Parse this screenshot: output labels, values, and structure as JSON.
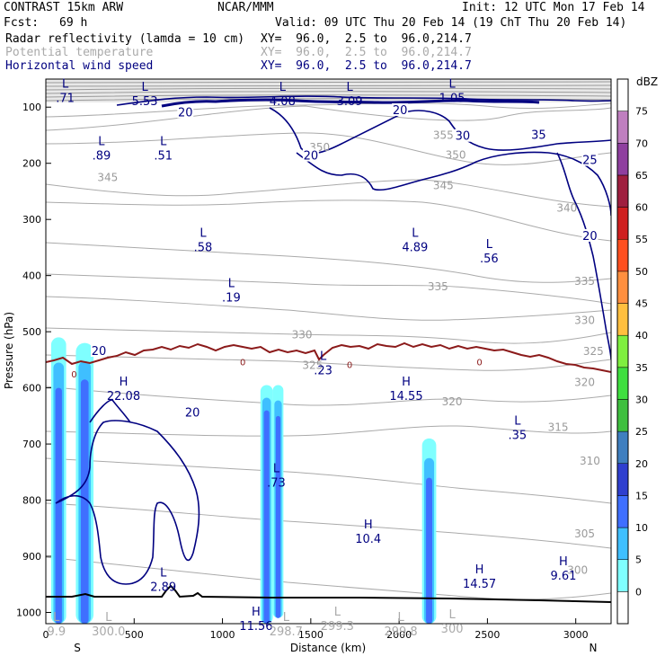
{
  "header": {
    "model": "CONTRAST 15km ARW",
    "org": "NCAR/MMM",
    "init": "Init: 12 UTC Mon 17 Feb 14",
    "fcst_label": "Fcst:",
    "fcst_value": "69 h",
    "valid": "Valid: 09 UTC Thu 20 Feb 14 (19 ChT Thu 20 Feb 14)",
    "fields": [
      {
        "name": "Radar reflectivity (lamda = 10 cm)",
        "xy": "XY=  96.0,  2.5 to  96.0,214.7",
        "color": "#000000"
      },
      {
        "name": "Potential temperature",
        "xy": "XY=  96.0,  2.5 to  96.0,214.7",
        "color": "#aaaaaa"
      },
      {
        "name": "Horizontal wind speed",
        "xy": "XY=  96.0,  2.5 to  96.0,214.7",
        "color": "#000080"
      }
    ]
  },
  "chart_data": {
    "type": "cross-section",
    "xlabel": "Distance (km)",
    "ylabel": "Pressure (hPa)",
    "xlim": [
      0,
      3200
    ],
    "ylim": [
      1020,
      50
    ],
    "x_ticks": [
      0,
      500,
      1000,
      1500,
      2000,
      2500,
      3000
    ],
    "x_tick_labels": [
      "0",
      "500",
      "1000",
      "1500",
      "2000",
      "2500",
      "3000"
    ],
    "y_ticks": [
      100,
      200,
      300,
      400,
      500,
      600,
      700,
      800,
      900,
      1000
    ],
    "y_tick_labels": [
      "100",
      "200",
      "300",
      "400",
      "500",
      "600",
      "700",
      "800",
      "900",
      "1000"
    ],
    "x_end_labels": {
      "left": "S",
      "right": "N"
    },
    "colorbar": {
      "unit": "dBZ",
      "levels": [
        "0",
        "5",
        "10",
        "15",
        "20",
        "25",
        "30",
        "35",
        "40",
        "45",
        "50",
        "55",
        "60",
        "65",
        "70",
        "75"
      ],
      "colors": [
        "#ffffff",
        "#7fffff",
        "#3fbfff",
        "#3f6fff",
        "#2f3fcf",
        "#3f7fbf",
        "#3fbf3f",
        "#3fdf3f",
        "#7fef3f",
        "#ffbf3f",
        "#ff8f3f",
        "#ff4f1f",
        "#cf1f1f",
        "#9f1f3f",
        "#8f3f9f",
        "#bf7fbf",
        "#ffffff"
      ]
    },
    "theta_labels": [
      {
        "text": "345",
        "x": 350,
        "p": 225
      },
      {
        "text": "350",
        "x": 1550,
        "p": 172
      },
      {
        "text": "350",
        "x": 2320,
        "p": 185
      },
      {
        "text": "355",
        "x": 2250,
        "p": 150
      },
      {
        "text": "345",
        "x": 2250,
        "p": 240
      },
      {
        "text": "340",
        "x": 2950,
        "p": 280
      },
      {
        "text": "335",
        "x": 2220,
        "p": 420
      },
      {
        "text": "335",
        "x": 3050,
        "p": 410
      },
      {
        "text": "330",
        "x": 1450,
        "p": 505
      },
      {
        "text": "330",
        "x": 3050,
        "p": 480
      },
      {
        "text": "325",
        "x": 1510,
        "p": 560
      },
      {
        "text": "325",
        "x": 3100,
        "p": 535
      },
      {
        "text": "320",
        "x": 2300,
        "p": 625
      },
      {
        "text": "320",
        "x": 3050,
        "p": 590
      },
      {
        "text": "315",
        "x": 2900,
        "p": 670
      },
      {
        "text": "310",
        "x": 3080,
        "p": 730
      },
      {
        "text": "305",
        "x": 3050,
        "p": 860
      },
      {
        "text": "300",
        "x": 3010,
        "p": 925
      }
    ],
    "wind_labels": [
      {
        "text": "20",
        "x": 790,
        "p": 110
      },
      {
        "text": "20",
        "x": 2005,
        "p": 106
      },
      {
        "text": "20",
        "x": 1500,
        "p": 187
      },
      {
        "text": "30",
        "x": 2360,
        "p": 152
      },
      {
        "text": "35",
        "x": 2790,
        "p": 150
      },
      {
        "text": "25",
        "x": 3080,
        "p": 195
      },
      {
        "text": "20",
        "x": 3080,
        "p": 330
      },
      {
        "text": "20",
        "x": 300,
        "p": 535
      },
      {
        "text": "20",
        "x": 830,
        "p": 645
      }
    ],
    "zero_labels": [
      {
        "text": "0",
        "x": 160,
        "p": 577
      },
      {
        "text": "0",
        "x": 1115,
        "p": 555
      },
      {
        "text": "0",
        "x": 1720,
        "p": 560
      },
      {
        "text": "0",
        "x": 2455,
        "p": 555
      }
    ],
    "extrema": [
      {
        "type": "L",
        "value": ".71",
        "x": 110,
        "p": 80,
        "color": "navy"
      },
      {
        "type": "L",
        "value": "5.53",
        "x": 560,
        "p": 85,
        "color": "navy"
      },
      {
        "type": "L",
        "value": "4.08",
        "x": 1340,
        "p": 85,
        "color": "navy"
      },
      {
        "type": "L",
        "value": "3.09",
        "x": 1720,
        "p": 85,
        "color": "navy"
      },
      {
        "type": "L",
        "value": "1.05",
        "x": 2300,
        "p": 80,
        "color": "navy"
      },
      {
        "type": "L",
        "value": ".89",
        "x": 315,
        "p": 182,
        "color": "navy"
      },
      {
        "type": "L",
        "value": ".51",
        "x": 665,
        "p": 182,
        "color": "navy"
      },
      {
        "type": "L",
        "value": ".58",
        "x": 890,
        "p": 345,
        "color": "navy"
      },
      {
        "type": "L",
        "value": "4.89",
        "x": 2090,
        "p": 345,
        "color": "navy"
      },
      {
        "type": "L",
        "value": ".56",
        "x": 2510,
        "p": 365,
        "color": "navy"
      },
      {
        "type": "L",
        "value": ".19",
        "x": 1050,
        "p": 435,
        "color": "navy"
      },
      {
        "type": "L",
        "value": ".23",
        "x": 1570,
        "p": 565,
        "color": "navy"
      },
      {
        "type": "H",
        "value": "22.08",
        "x": 440,
        "p": 610,
        "color": "navy"
      },
      {
        "type": "H",
        "value": "14.55",
        "x": 2040,
        "p": 610,
        "color": "navy"
      },
      {
        "type": "L",
        "value": ".35",
        "x": 2670,
        "p": 680,
        "color": "navy"
      },
      {
        "type": "L",
        "value": ".73",
        "x": 1305,
        "p": 765,
        "color": "navy"
      },
      {
        "type": "H",
        "value": "10.4",
        "x": 1825,
        "p": 865,
        "color": "navy"
      },
      {
        "type": "L",
        "value": "2.89",
        "x": 665,
        "p": 950,
        "color": "navy"
      },
      {
        "type": "H",
        "value": "14.57",
        "x": 2455,
        "p": 945,
        "color": "navy"
      },
      {
        "type": "H",
        "value": "9.61",
        "x": 2930,
        "p": 930,
        "color": "navy"
      },
      {
        "type": "H",
        "value": "11.56",
        "x": 1190,
        "p": 1020,
        "color": "navy"
      },
      {
        "type": "L",
        "value": "300.0",
        "x": 355,
        "p": 1030,
        "color": "gray"
      },
      {
        "type": "L",
        "value": "298.7",
        "x": 1360,
        "p": 1030,
        "color": "gray"
      },
      {
        "type": "L",
        "value": "299.3",
        "x": 1650,
        "p": 1020,
        "color": "gray"
      },
      {
        "type": "L",
        "value": "299.8",
        "x": 2010,
        "p": 1030,
        "color": "gray"
      },
      {
        "type": "L",
        "value": "300",
        "x": 2300,
        "p": 1025,
        "color": "gray"
      },
      {
        "type": "L",
        "value": "9.9",
        "x": 60,
        "p": 1030,
        "color": "gray"
      }
    ],
    "radar_cells": [
      {
        "x0": 30,
        "x1": 115,
        "p_top": 510,
        "p_bot": 1020,
        "core_top": 600
      },
      {
        "x0": 170,
        "x1": 270,
        "p_top": 520,
        "p_bot": 1020,
        "core_top": 585
      },
      {
        "x0": 1215,
        "x1": 1285,
        "p_top": 595,
        "p_bot": 1020,
        "core_top": 640
      },
      {
        "x0": 1285,
        "x1": 1345,
        "p_top": 595,
        "p_bot": 1010,
        "core_top": 650
      },
      {
        "x0": 2130,
        "x1": 2210,
        "p_top": 690,
        "p_bot": 1020,
        "core_top": 760
      }
    ]
  }
}
